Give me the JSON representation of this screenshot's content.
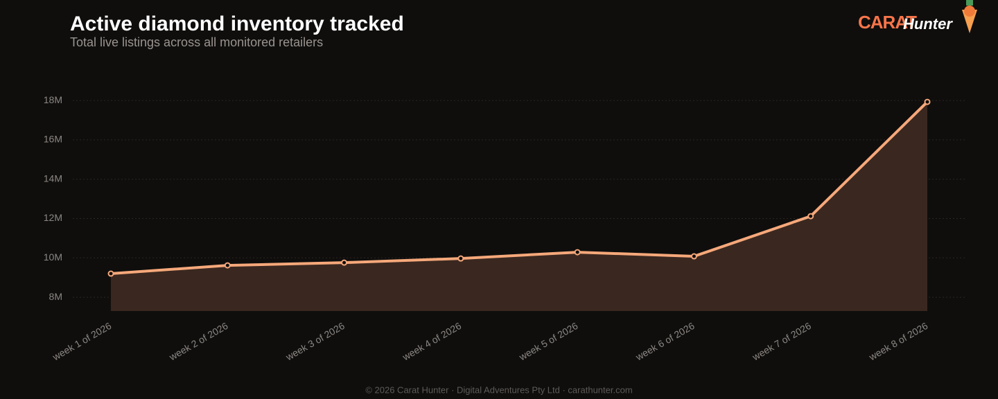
{
  "brand": {
    "name": "CARAT",
    "suffix": "Hunter"
  },
  "footer": "© 2026 Carat Hunter · Digital Adventures Pty Ltd · carathunter.com",
  "chart_data": {
    "type": "area",
    "title": "Active diamond inventory tracked",
    "subtitle": "Total live listings across all monitored retailers",
    "categories": [
      "week 1 of 2026",
      "week 2 of 2026",
      "week 3 of 2026",
      "week 4 of 2026",
      "week 5 of 2026",
      "week 6 of 2026",
      "week 7 of 2026",
      "week 8 of 2026"
    ],
    "values": [
      9200000,
      9620000,
      9760000,
      9970000,
      10290000,
      10080000,
      12120000,
      17930000
    ],
    "color": "#f6a87a",
    "fill": "#3a2820",
    "ylim": [
      7300000,
      18200000
    ],
    "yticks": [
      {
        "value": 8000000,
        "label": "8M"
      },
      {
        "value": 10000000,
        "label": "10M"
      },
      {
        "value": 12000000,
        "label": "12M"
      },
      {
        "value": 14000000,
        "label": "14M"
      },
      {
        "value": 16000000,
        "label": "16M"
      },
      {
        "value": 18000000,
        "label": "18M"
      }
    ],
    "grid": true
  }
}
